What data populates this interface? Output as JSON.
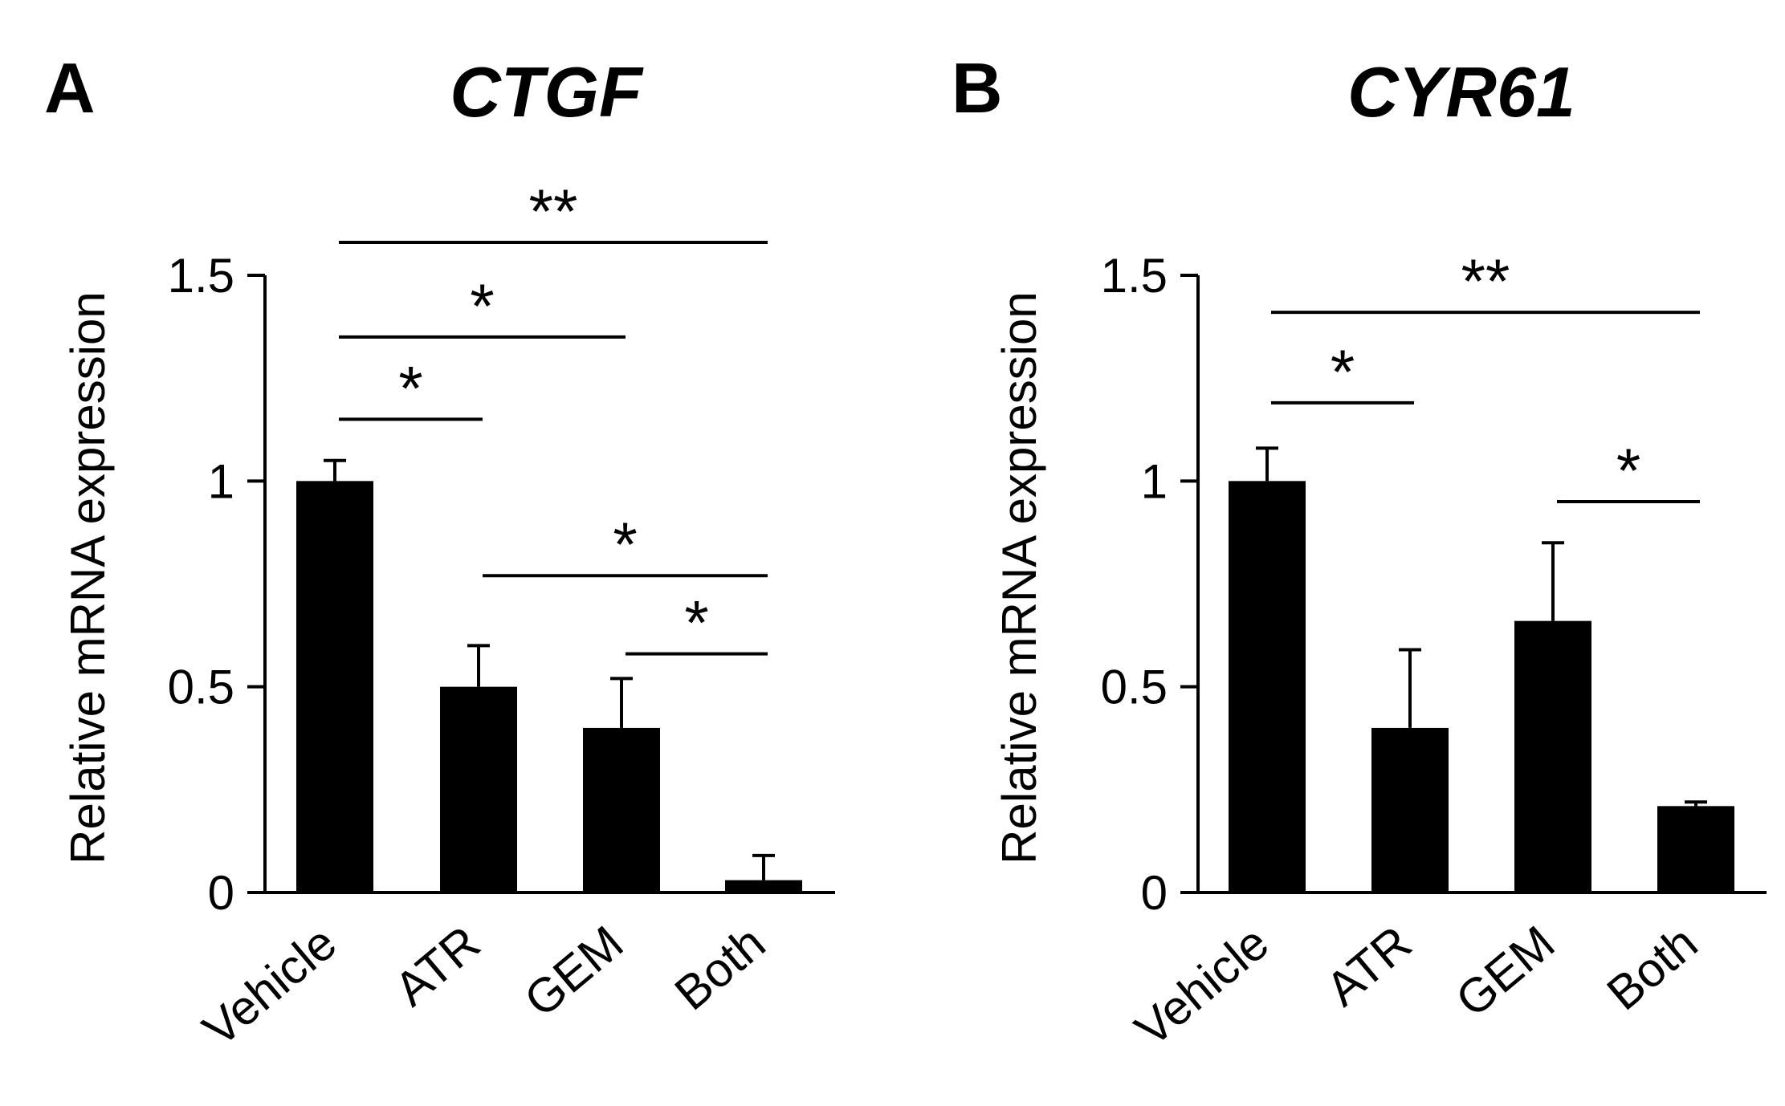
{
  "figure_panels": [
    "A",
    "B"
  ],
  "chart_data": [
    {
      "panel": "A",
      "type": "bar",
      "title": "CTGF",
      "xlabel": "",
      "ylabel": "Relative mRNA expression",
      "ylim": [
        0,
        1.5
      ],
      "yticks": [
        0,
        0.5,
        1,
        1.5
      ],
      "ytick_labels": [
        "0",
        "0.5",
        "1",
        "1.5"
      ],
      "categories": [
        "Vehicle",
        "ATR",
        "GEM",
        "Both"
      ],
      "values": [
        1.0,
        0.5,
        0.4,
        0.03
      ],
      "errors": [
        0.05,
        0.1,
        0.12,
        0.06
      ],
      "bar_color": "#000000",
      "significance": [
        {
          "from": "Vehicle",
          "to": "Both",
          "label": "**",
          "y": 1.58
        },
        {
          "from": "Vehicle",
          "to": "GEM",
          "label": "*",
          "y": 1.35
        },
        {
          "from": "Vehicle",
          "to": "ATR",
          "label": "*",
          "y": 1.15
        },
        {
          "from": "ATR",
          "to": "Both",
          "label": "*",
          "y": 0.77
        },
        {
          "from": "GEM",
          "to": "Both",
          "label": "*",
          "y": 0.58
        }
      ]
    },
    {
      "panel": "B",
      "type": "bar",
      "title": "CYR61",
      "xlabel": "",
      "ylabel": "Relative mRNA expression",
      "ylim": [
        0,
        1.5
      ],
      "yticks": [
        0,
        0.5,
        1,
        1.5
      ],
      "ytick_labels": [
        "0",
        "0.5",
        "1",
        "1.5"
      ],
      "categories": [
        "Vehicle",
        "ATR",
        "GEM",
        "Both"
      ],
      "values": [
        1.0,
        0.4,
        0.66,
        0.21
      ],
      "errors": [
        0.08,
        0.19,
        0.19,
        0.01
      ],
      "bar_color": "#000000",
      "significance": [
        {
          "from": "Vehicle",
          "to": "Both",
          "label": "**",
          "y": 1.41
        },
        {
          "from": "Vehicle",
          "to": "ATR",
          "label": "*",
          "y": 1.19
        },
        {
          "from": "GEM",
          "to": "Both",
          "label": "*",
          "y": 0.95
        }
      ]
    }
  ]
}
